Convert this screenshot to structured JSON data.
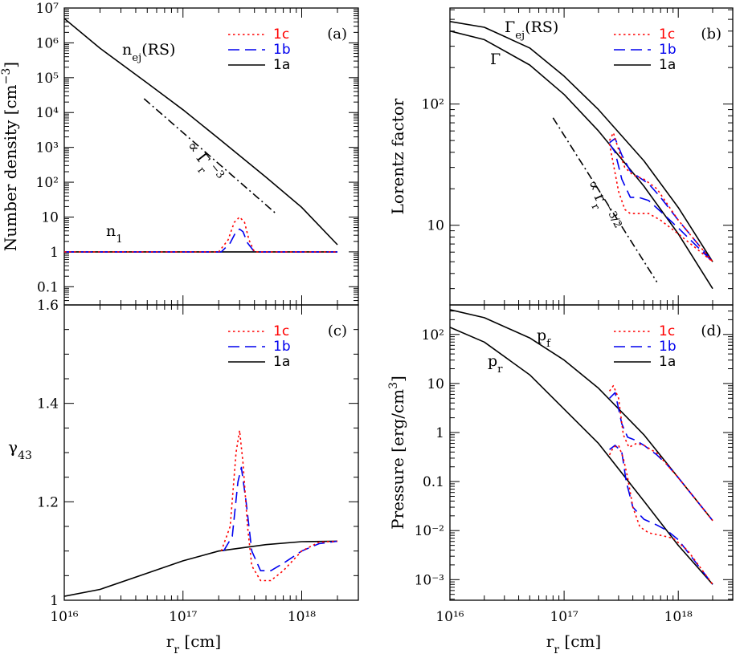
{
  "colors": {
    "c1c": "#ff0000",
    "c1b": "#0000ee",
    "c1a": "#000000"
  },
  "xlabel": "r",
  "xlabel_sub": "r",
  "xlabel_unit": "[cm]",
  "chart_data": [
    {
      "id": "a",
      "type": "line",
      "panel_label": "(a)",
      "ylabel": "Number density [cm",
      "ylabel_sup": "−3",
      "ylabel_end": "]",
      "xscale": "log",
      "yscale": "log",
      "xlim": [
        1e+16,
        3e+18
      ],
      "ylim": [
        0.03,
        10000000.0
      ],
      "legend": [
        "1c",
        "1b",
        "1a"
      ],
      "annotations": {
        "nej": "n",
        "nej_sub": "ej",
        "nej_rest": "(RS)",
        "n1": "n",
        "n1_sub": "1",
        "slope": "∝ Γ",
        "slope_sub": "r",
        "slope_sup": "−3"
      },
      "series": [
        {
          "name": "1a",
          "style": "solid",
          "x": [
            1e+16,
            2e+16,
            5e+16,
            1e+17,
            2e+17,
            5e+17,
            1e+18,
            2e+18
          ],
          "y": [
            5000000.0,
            700000.0,
            70000.0,
            12000.0,
            1800,
            140,
            19,
            1.6
          ]
        },
        {
          "name": "1a",
          "style": "solid",
          "x": [
            1e+16,
            2e+18
          ],
          "y": [
            1,
            1
          ]
        },
        {
          "name": "1b",
          "style": "dashed",
          "x": [
            1e+16,
            2.1e+17,
            2.5e+17,
            2.8e+17,
            3e+17,
            3.2e+17,
            3.5e+17,
            4e+17,
            2e+18
          ],
          "y": [
            1,
            1,
            1.8,
            3.8,
            4.5,
            3.8,
            1.8,
            1,
            1
          ]
        },
        {
          "name": "1c",
          "style": "dotted",
          "x": [
            1e+16,
            2e+17,
            2.4e+17,
            2.7e+17,
            3e+17,
            3.3e+17,
            3.6e+17,
            4e+17,
            2e+18
          ],
          "y": [
            1,
            1,
            2.2,
            7,
            10,
            7,
            2.2,
            1,
            1
          ]
        },
        {
          "name": "slope",
          "style": "dashdot",
          "x": [
            4.7e+16,
            6e+17
          ],
          "y": [
            25000.0,
            13
          ]
        }
      ]
    },
    {
      "id": "b",
      "type": "line",
      "panel_label": "(b)",
      "ylabel": "Lorentz factor",
      "xscale": "log",
      "yscale": "log",
      "xlim": [
        1e+16,
        3e+18
      ],
      "ylim": [
        2.2,
        620
      ],
      "yticks_labeled": [
        10,
        100
      ],
      "legend": [
        "1c",
        "1b",
        "1a"
      ],
      "annotations": {
        "gej": "Γ",
        "gej_sub": "ej",
        "gej_rest": "(RS)",
        "g": "Γ",
        "slope": "∝ r",
        "slope_sub": "r",
        "slope_sup": "−3/2"
      },
      "series": [
        {
          "name": "1a",
          "style": "solid",
          "x": [
            1e+16,
            2e+16,
            5e+16,
            1e+17,
            2e+17,
            5e+17,
            1e+18,
            2e+18
          ],
          "y": [
            480,
            430,
            290,
            170,
            90,
            34,
            14,
            5
          ]
        },
        {
          "name": "1a",
          "style": "solid",
          "x": [
            1e+16,
            2e+16,
            5e+16,
            1e+17,
            2e+17,
            5e+17,
            1e+18,
            2e+18
          ],
          "y": [
            400,
            340,
            210,
            120,
            60,
            21,
            8.5,
            3
          ]
        },
        {
          "name": "1b",
          "style": "dashed",
          "x": [
            2.5e+17,
            2.8e+17,
            3.2e+17,
            3.8e+17,
            4.5e+17,
            5.5e+17,
            7e+17,
            1e+18,
            2e+18
          ],
          "y": [
            48,
            52,
            38,
            28,
            25,
            22,
            17,
            11,
            5
          ]
        },
        {
          "name": "1b",
          "style": "dashed",
          "x": [
            2.5e+17,
            2.8e+17,
            3.2e+17,
            3.8e+17,
            4.5e+17,
            5.5e+17,
            7e+17,
            1e+18,
            2e+18
          ],
          "y": [
            47,
            40,
            24,
            17,
            17,
            16,
            13,
            9.5,
            5
          ]
        },
        {
          "name": "1c",
          "style": "dotted",
          "x": [
            2.5e+17,
            2.7e+17,
            3e+17,
            3.4e+17,
            4e+17,
            5e+17,
            6.5e+17,
            8e+17,
            1e+18,
            2e+18
          ],
          "y": [
            50,
            58,
            42,
            30,
            26,
            24,
            20,
            15,
            11,
            5
          ]
        },
        {
          "name": "1c",
          "style": "dotted",
          "x": [
            2.5e+17,
            2.7e+17,
            3e+17,
            3.4e+17,
            3.8e+17,
            4.5e+17,
            5.5e+17,
            7e+17,
            1e+18,
            2e+18
          ],
          "y": [
            47,
            32,
            19,
            13.5,
            12.5,
            12.5,
            12.5,
            11,
            8.5,
            5
          ]
        },
        {
          "name": "slope",
          "style": "dashdot",
          "x": [
            8e+16,
            6.5e+17
          ],
          "y": [
            77,
            3.4
          ]
        }
      ]
    },
    {
      "id": "c",
      "type": "line",
      "panel_label": "(c)",
      "ylabel": "γ",
      "ylabel_sub": "43",
      "xscale": "log",
      "yscale": "linear",
      "xlim": [
        1e+16,
        3e+18
      ],
      "ylim": [
        1,
        1.6
      ],
      "yticks_labeled": [
        1,
        1.2,
        1.4,
        1.6
      ],
      "legend": [
        "1c",
        "1b",
        "1a"
      ],
      "series": [
        {
          "name": "1a",
          "style": "solid",
          "x": [
            1e+16,
            2e+16,
            5e+16,
            1e+17,
            2e+17,
            5e+17,
            1e+18,
            2e+18
          ],
          "y": [
            1.008,
            1.022,
            1.055,
            1.08,
            1.1,
            1.113,
            1.119,
            1.12
          ]
        },
        {
          "name": "1b",
          "style": "dashed",
          "x": [
            2.2e+17,
            2.6e+17,
            2.9e+17,
            3.1e+17,
            3.4e+17,
            3.8e+17,
            4.5e+17,
            5.5e+17,
            7e+17,
            1e+18,
            1.4e+18,
            2e+18
          ],
          "y": [
            1.1,
            1.13,
            1.24,
            1.27,
            1.2,
            1.1,
            1.06,
            1.06,
            1.075,
            1.1,
            1.115,
            1.12
          ]
        },
        {
          "name": "1c",
          "style": "dotted",
          "x": [
            2.1e+17,
            2.5e+17,
            2.8e+17,
            3e+17,
            3.2e+17,
            3.5e+17,
            3.8e+17,
            4.5e+17,
            5.5e+17,
            7e+17,
            1e+18,
            1.4e+18,
            2e+18
          ],
          "y": [
            1.1,
            1.15,
            1.3,
            1.345,
            1.28,
            1.15,
            1.07,
            1.04,
            1.04,
            1.06,
            1.1,
            1.118,
            1.12
          ]
        }
      ]
    },
    {
      "id": "d",
      "type": "line",
      "panel_label": "(d)",
      "ylabel": "Pressure [erg/cm",
      "ylabel_sup": "3",
      "ylabel_end": "]",
      "xscale": "log",
      "yscale": "log",
      "xlim": [
        1e+16,
        3e+18
      ],
      "ylim": [
        0.00038,
        400
      ],
      "legend": [
        "1c",
        "1b",
        "1a"
      ],
      "annotations": {
        "pf": "p",
        "pf_sub": "f",
        "pr": "p",
        "pr_sub": "r"
      },
      "series": [
        {
          "name": "1a",
          "style": "solid",
          "x": [
            1e+16,
            2e+16,
            5e+16,
            1e+17,
            2e+17,
            5e+17,
            1e+18,
            2e+18
          ],
          "y": [
            320,
            220,
            85,
            30,
            8,
            0.9,
            0.12,
            0.016
          ]
        },
        {
          "name": "1a",
          "style": "solid",
          "x": [
            1e+16,
            2e+16,
            5e+16,
            1e+17,
            2e+17,
            5e+17,
            1e+18,
            2e+18
          ],
          "y": [
            140,
            70,
            15,
            3,
            0.6,
            0.04,
            0.005,
            0.0008
          ]
        },
        {
          "name": "1b",
          "style": "dashed",
          "x": [
            2.5e+17,
            2.8e+17,
            3.2e+17,
            3.6e+17,
            4.2e+17,
            5e+17,
            6.5e+17,
            8e+17,
            1e+18,
            2e+18
          ],
          "y": [
            5,
            6.5,
            1.5,
            0.8,
            0.7,
            0.55,
            0.35,
            0.22,
            0.12,
            0.016
          ]
        },
        {
          "name": "1b",
          "style": "dashed",
          "x": [
            2.5e+17,
            2.8e+17,
            3.2e+17,
            3.5e+17,
            4e+17,
            5e+17,
            6.5e+17,
            8e+17,
            1e+18,
            2e+18
          ],
          "y": [
            0.45,
            0.55,
            0.4,
            0.1,
            0.03,
            0.017,
            0.013,
            0.01,
            0.0065,
            0.0008
          ]
        },
        {
          "name": "1c",
          "style": "dotted",
          "x": [
            2.5e+17,
            2.7e+17,
            3e+17,
            3.3e+17,
            3.7e+17,
            4.3e+17,
            5e+17,
            6.5e+17,
            8e+17,
            1e+18,
            2e+18
          ],
          "y": [
            7,
            9,
            5,
            0.9,
            0.5,
            0.6,
            0.55,
            0.38,
            0.22,
            0.12,
            0.016
          ]
        },
        {
          "name": "1c",
          "style": "dotted",
          "x": [
            2.5e+17,
            2.7e+17,
            3e+17,
            3.3e+17,
            3.6e+17,
            4e+17,
            4.6e+17,
            5.5e+17,
            7e+17,
            9e+17,
            1.2e+18,
            2e+18
          ],
          "y": [
            0.35,
            0.5,
            0.55,
            0.3,
            0.12,
            0.03,
            0.012,
            0.009,
            0.008,
            0.007,
            0.004,
            0.0008
          ]
        }
      ]
    }
  ]
}
